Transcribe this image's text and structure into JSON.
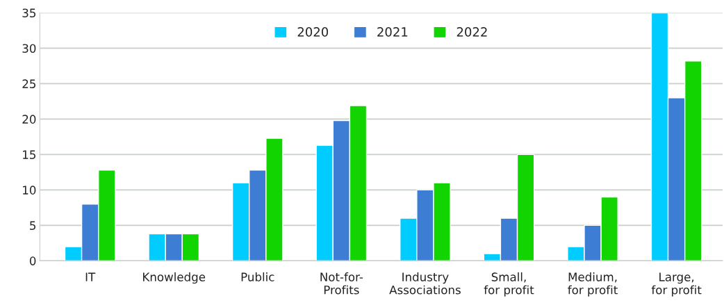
{
  "chart_data": {
    "type": "bar",
    "categories": [
      "IT",
      "Knowledge",
      "Public",
      "Not-for-\nProfits",
      "Industry\nAssociations",
      "Small,\nfor profit",
      "Medium,\nfor profit",
      "Large,\nfor profit"
    ],
    "series": [
      {
        "name": "2020",
        "color": "#00ccff",
        "values": [
          2,
          3.8,
          11,
          16.3,
          6,
          1,
          2,
          35
        ]
      },
      {
        "name": "2021",
        "color": "#3d7dd4",
        "values": [
          8,
          3.8,
          12.8,
          19.8,
          10,
          6,
          5,
          23
        ]
      },
      {
        "name": "2022",
        "color": "#11d400",
        "values": [
          12.8,
          3.8,
          17.3,
          21.9,
          11,
          15,
          9,
          28.2
        ]
      }
    ],
    "ylim": [
      0,
      35
    ],
    "yticks": [
      0,
      5,
      10,
      15,
      20,
      25,
      30,
      35
    ],
    "grid": "y",
    "legend": "top"
  }
}
